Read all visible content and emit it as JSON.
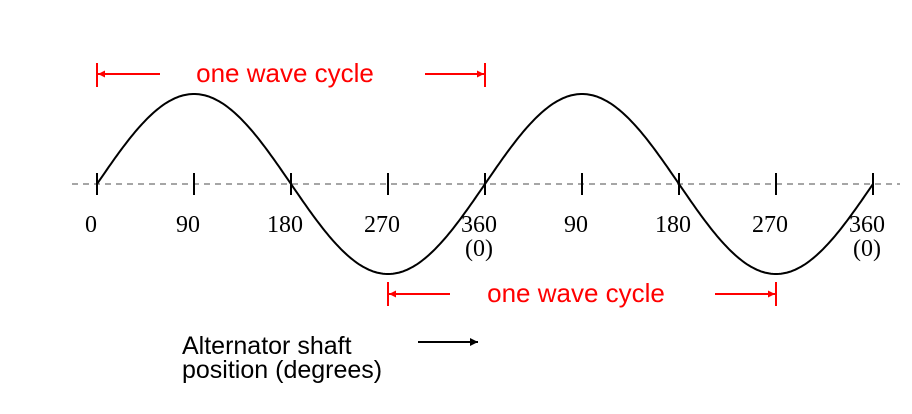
{
  "ticks": [
    {
      "label": "0"
    },
    {
      "label": "90"
    },
    {
      "label": "180"
    },
    {
      "label": "270"
    },
    {
      "label": "360",
      "sublabel": "(0)"
    },
    {
      "label": "90"
    },
    {
      "label": "180"
    },
    {
      "label": "270"
    },
    {
      "label": "360",
      "sublabel": "(0)"
    }
  ],
  "cycles": [
    {
      "label": "one wave cycle"
    },
    {
      "label": "one wave cycle"
    }
  ],
  "axis_label": [
    "Alternator shaft",
    "position (degrees)"
  ]
}
